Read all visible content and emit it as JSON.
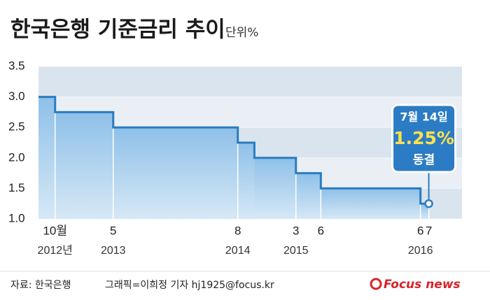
{
  "chart_data": {
    "type": "step",
    "title": "한국은행 기준금리 추이",
    "subtitle": "단위%",
    "xlim": [
      "2012-08",
      "2016-11"
    ],
    "xticks": [
      {
        "value": "2012-10",
        "label": "10월"
      },
      {
        "value": "2013-05",
        "label": "5"
      },
      {
        "value": "2014-08",
        "label": "8"
      },
      {
        "value": "2015-03",
        "label": "3"
      },
      {
        "value": "2015-06",
        "label": "6"
      },
      {
        "value": "2016-06",
        "label": "6"
      },
      {
        "value": "2016-07",
        "label": "7"
      }
    ],
    "xticks_year": [
      {
        "value": "2012-10",
        "label": "2012년"
      },
      {
        "value": "2013-05",
        "label": "2013"
      },
      {
        "value": "2014-08",
        "label": "2014"
      },
      {
        "value": "2015-03",
        "label": "2015"
      },
      {
        "value": "2016-06",
        "label": "2016"
      }
    ],
    "ylim": [
      1,
      3.5
    ],
    "yticks": [
      {
        "value": 1,
        "label": "1.0"
      },
      1.5,
      {
        "value": 2,
        "label": "2.0"
      },
      2.5,
      {
        "value": 3,
        "label": "3.0"
      },
      3.5
    ],
    "series": [
      {
        "color": "#2a7cc0",
        "x": [
          "2012-08",
          "2012-10",
          "2013-05",
          "2014-08",
          "2014-10",
          "2015-03",
          "2015-06",
          "2016-06",
          "2016-07"
        ],
        "values": [
          3,
          2.75,
          2.5,
          2.25,
          2,
          1.75,
          1.5,
          1.25,
          1.25
        ]
      }
    ],
    "annotation": {
      "date": "7월 14일",
      "value": "1.25%",
      "status": "동결"
    },
    "source": "자료: 한국은행",
    "credit": "그래픽=이희정 기자 hj1925@focus.kr",
    "logo": "Focus news"
  }
}
